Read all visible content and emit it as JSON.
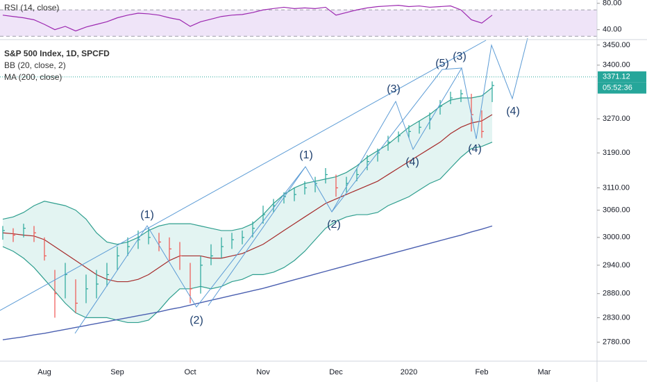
{
  "chart_data": [
    {
      "type": "ohlc",
      "title": "S&P 500 Index, 1D, SPCFD",
      "log_scale": true,
      "up_color": "#26a69a",
      "down_color": "#ef5350",
      "categories": [
        null,
        null,
        null,
        null,
        "Aug",
        null,
        null,
        null,
        null,
        null,
        null,
        "Sep",
        null,
        null,
        null,
        null,
        null,
        null,
        "Oct",
        null,
        null,
        null,
        null,
        null,
        null,
        "Nov",
        null,
        null,
        null,
        null,
        null,
        null,
        "Dec",
        null,
        null,
        null,
        null,
        null,
        null,
        "2020",
        null,
        null,
        null,
        null,
        null,
        null,
        "Feb",
        null,
        null,
        null,
        null,
        null,
        "Mar",
        null,
        null,
        null,
        null,
        null
      ],
      "high": [
        3025,
        3020,
        3030,
        3025,
        3000,
        2930,
        2945,
        2910,
        2920,
        2930,
        2945,
        2980,
        3000,
        3015,
        3020,
        3010,
        3000,
        2990,
        2945,
        2960,
        2985,
        3000,
        3010,
        3015,
        3035,
        3070,
        3085,
        3100,
        3110,
        3125,
        3135,
        3155,
        3140,
        3135,
        3155,
        3185,
        3200,
        3230,
        3240,
        3255,
        3265,
        3285,
        3315,
        3335,
        3340,
        3330,
        3290,
        3360,
        null,
        null,
        null,
        null,
        null,
        null,
        null,
        null,
        null,
        null
      ],
      "low": [
        2995,
        2990,
        3000,
        2990,
        2950,
        2830,
        2870,
        2840,
        2860,
        2870,
        2895,
        2930,
        2960,
        2975,
        2985,
        2970,
        2950,
        2930,
        2860,
        2880,
        2940,
        2955,
        2975,
        2985,
        3000,
        3030,
        3055,
        3075,
        3080,
        3095,
        3100,
        3120,
        3090,
        3100,
        3125,
        3150,
        3170,
        3195,
        3215,
        3225,
        3235,
        3245,
        3280,
        3305,
        3310,
        3240,
        3225,
        3310,
        null,
        null,
        null,
        null,
        null,
        null,
        null,
        null,
        null,
        null
      ],
      "close": [
        3015,
        3005,
        3020,
        3010,
        2960,
        2880,
        2920,
        2860,
        2890,
        2900,
        2920,
        2960,
        2980,
        2995,
        3000,
        2990,
        2975,
        2960,
        2890,
        2940,
        2960,
        2980,
        2995,
        3000,
        3020,
        3050,
        3070,
        3090,
        3095,
        3110,
        3120,
        3140,
        3110,
        3120,
        3140,
        3170,
        3190,
        3215,
        3230,
        3240,
        3250,
        3270,
        3300,
        3320,
        3330,
        3280,
        3240,
        3350,
        null,
        null,
        null,
        null,
        null,
        null,
        null,
        null,
        null,
        null
      ],
      "indicators": [
        {
          "name": "BB (20, close, 2)",
          "color": "#2e9e8e",
          "basis_color": "#a52a2a",
          "fill": "#e3f4f2",
          "basis": [
            3010,
            3008,
            3005,
            3003,
            2995,
            2980,
            2965,
            2950,
            2935,
            2920,
            2910,
            2905,
            2905,
            2910,
            2920,
            2935,
            2950,
            2960,
            2960,
            2960,
            2955,
            2955,
            2960,
            2965,
            2975,
            2985,
            3000,
            3015,
            3030,
            3045,
            3060,
            3075,
            3085,
            3095,
            3105,
            3115,
            3125,
            3140,
            3155,
            3170,
            3185,
            3200,
            3215,
            3235,
            3250,
            3260,
            3265,
            3280,
            null,
            null,
            null,
            null,
            null,
            null,
            null,
            null,
            null,
            null
          ],
          "upper": [
            3040,
            3045,
            3055,
            3070,
            3080,
            3075,
            3070,
            3060,
            3040,
            3010,
            2990,
            2985,
            2990,
            3000,
            3015,
            3025,
            3030,
            3030,
            3030,
            3025,
            3020,
            3015,
            3015,
            3020,
            3030,
            3050,
            3075,
            3095,
            3110,
            3120,
            3125,
            3130,
            3135,
            3145,
            3160,
            3180,
            3195,
            3210,
            3230,
            3250,
            3265,
            3280,
            3300,
            3315,
            3320,
            3320,
            3325,
            3345,
            null,
            null,
            null,
            null,
            null,
            null,
            null,
            null,
            null,
            null
          ],
          "lower": [
            2980,
            2970,
            2955,
            2935,
            2910,
            2885,
            2860,
            2840,
            2830,
            2830,
            2830,
            2825,
            2820,
            2820,
            2825,
            2845,
            2870,
            2890,
            2890,
            2895,
            2890,
            2895,
            2905,
            2910,
            2920,
            2920,
            2925,
            2935,
            2950,
            2970,
            2995,
            3020,
            3035,
            3045,
            3050,
            3050,
            3055,
            3070,
            3080,
            3090,
            3105,
            3120,
            3130,
            3155,
            3180,
            3200,
            3205,
            3215,
            null,
            null,
            null,
            null,
            null,
            null,
            null,
            null,
            null,
            null
          ]
        },
        {
          "name": "MA (200, close)",
          "color": "#4a5fb0",
          "values": [
            2785,
            2788,
            2791,
            2795,
            2798,
            2802,
            2806,
            2810,
            2814,
            2818,
            2822,
            2826,
            2830,
            2834,
            2838,
            2842,
            2847,
            2851,
            2856,
            2861,
            2866,
            2871,
            2876,
            2881,
            2886,
            2891,
            2897,
            2903,
            2909,
            2915,
            2921,
            2927,
            2933,
            2939,
            2945,
            2951,
            2957,
            2963,
            2969,
            2975,
            2981,
            2987,
            2993,
            2999,
            3005,
            3012,
            3018,
            3025,
            null,
            null,
            null,
            null,
            null,
            null,
            null,
            null,
            null,
            null
          ]
        }
      ],
      "ylim": [
        2742,
        3462
      ],
      "yticks": [
        {
          "value": 3450,
          "label": "3450.00"
        },
        {
          "value": 3400,
          "label": "3400.00"
        },
        {
          "value": 3270,
          "label": "3270.00"
        },
        {
          "value": 3190,
          "label": "3190.00"
        },
        {
          "value": 3110,
          "label": "3110.00"
        },
        {
          "value": 3060,
          "label": "3060.00"
        },
        {
          "value": 3000,
          "label": "3000.00"
        },
        {
          "value": 2940,
          "label": "2940.00"
        },
        {
          "value": 2880,
          "label": "2880.00"
        },
        {
          "value": 2830,
          "label": "2830.00"
        },
        {
          "value": 2780,
          "label": "2780.00"
        }
      ],
      "last_price": 3371.12,
      "countdown": "05:52:36",
      "annotations": [
        "(1)",
        "(2)",
        "(1)",
        "(2)",
        "(3)",
        "(4)",
        "(5)",
        "(3)",
        "(4)",
        "(4)"
      ]
    },
    {
      "type": "line",
      "title": "RSI (14, close)",
      "color": "#9c27b0",
      "band_color": "#efe4f8",
      "values": [
        62,
        60,
        58,
        55,
        48,
        40,
        45,
        38,
        44,
        48,
        52,
        58,
        62,
        65,
        64,
        62,
        58,
        55,
        45,
        52,
        56,
        60,
        62,
        63,
        66,
        70,
        72,
        74,
        72,
        73,
        72,
        74,
        62,
        66,
        70,
        73,
        75,
        76,
        77,
        75,
        76,
        74,
        75,
        76,
        70,
        55,
        50,
        62,
        null,
        null,
        null,
        null,
        null,
        null,
        null,
        null,
        null,
        null
      ],
      "bands": [
        30,
        70
      ],
      "ylim": [
        26,
        85
      ],
      "yticks": [
        {
          "value": 80,
          "label": "80.00"
        },
        {
          "value": 40,
          "label": "40.00"
        }
      ]
    }
  ]
}
